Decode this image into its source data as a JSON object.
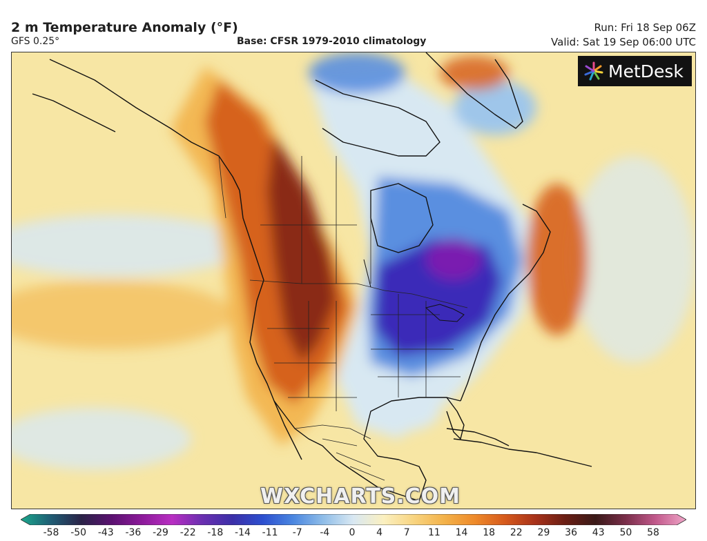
{
  "header": {
    "title": "2 m Temperature Anomaly (°F)",
    "model": "GFS 0.25°",
    "base": "Base: CFSR 1979-2010 climatology",
    "run": "Run: Fri 18 Sep 06Z",
    "valid": "Valid: Sat 19 Sep 06:00 UTC"
  },
  "branding": {
    "logo_text": "MetDesk",
    "watermark": "WXCHARTS.COM"
  },
  "legend": {
    "ticks": [
      "-58",
      "-50",
      "-43",
      "-36",
      "-29",
      "-22",
      "-18",
      "-14",
      "-11",
      "-7",
      "-4",
      "0",
      "4",
      "7",
      "11",
      "14",
      "18",
      "22",
      "29",
      "36",
      "43",
      "50",
      "58"
    ],
    "colors": [
      "#1aa88c",
      "#1f5c74",
      "#2a2348",
      "#5a1170",
      "#8c1a9a",
      "#b82ec2",
      "#6a2fb0",
      "#3b2fa8",
      "#2c4fcf",
      "#4a86e0",
      "#8fbde8",
      "#d9e8f2",
      "#fbf0c0",
      "#f8d480",
      "#f3b24a",
      "#ee8a2a",
      "#d65a1c",
      "#a8321a",
      "#6a1e14",
      "#3a1a18",
      "#7a2e4a",
      "#c25a8c",
      "#f0a6c8"
    ]
  },
  "map": {
    "palette": {
      "ocean_base": "#f7e6a4",
      "warm_core": "#8a2a12",
      "warm_mid": "#d6621e",
      "warm_light": "#f2b24a",
      "cool_light": "#d8e8f2",
      "cool_mid": "#5a8fe0",
      "cool_deep": "#3a2ab8",
      "cold_core": "#7a1fb0",
      "greenland_cool": "#9fc6ea"
    }
  }
}
